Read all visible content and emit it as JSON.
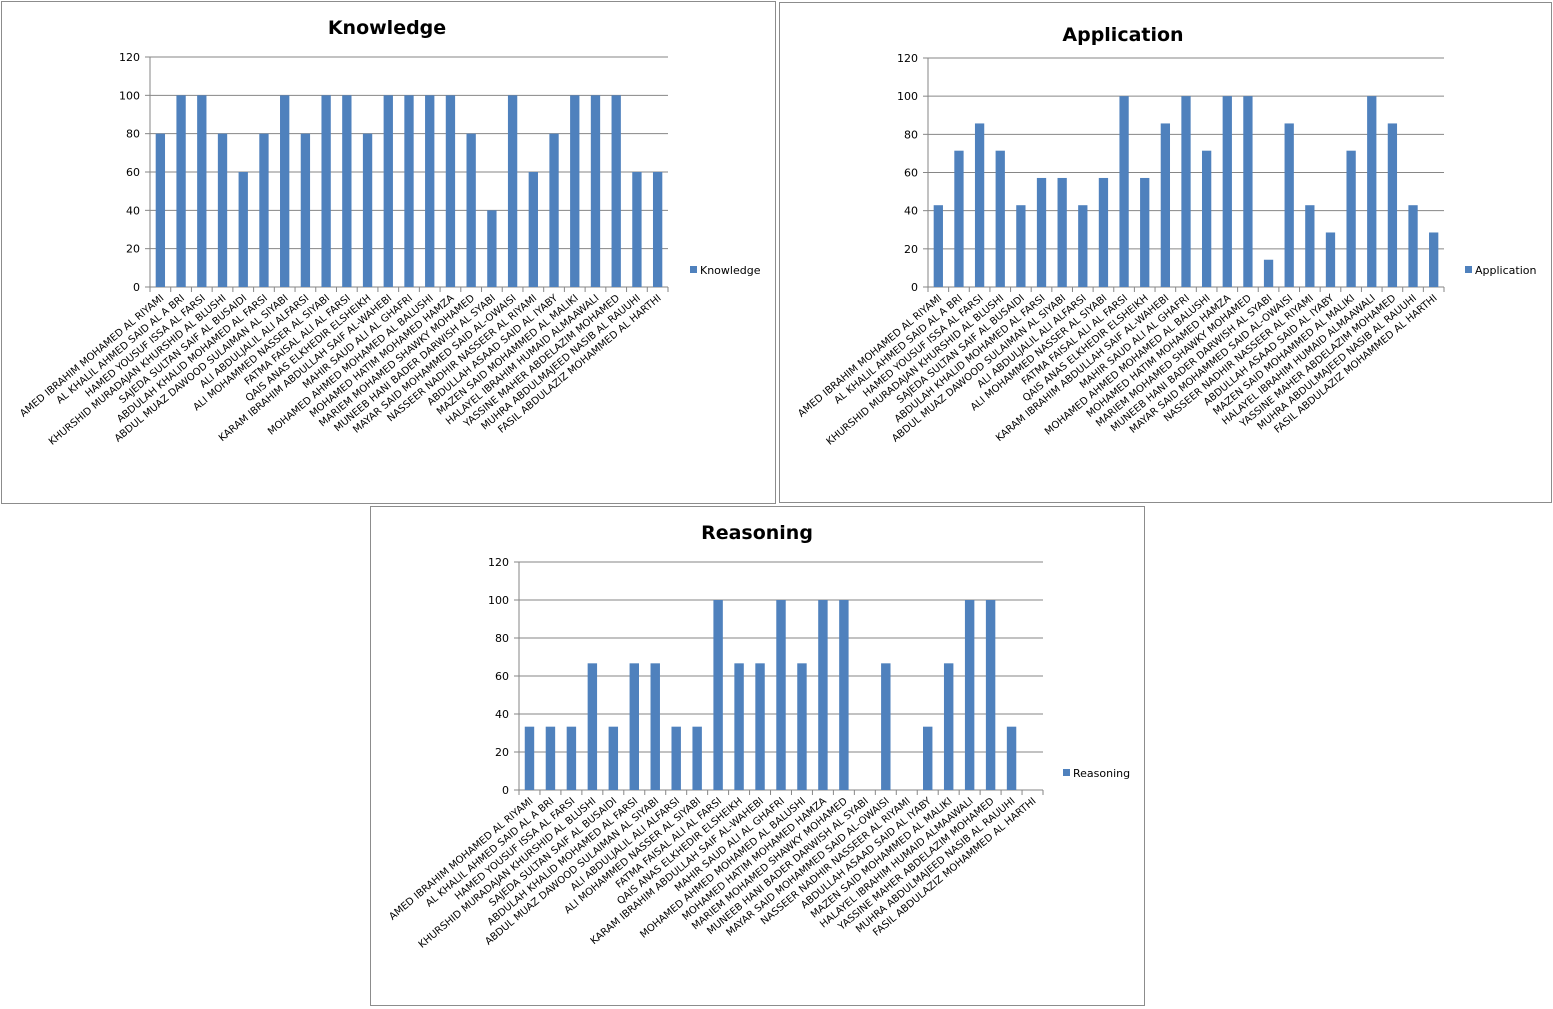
{
  "chart_data": [
    {
      "type": "bar",
      "title": "Knowledge",
      "legend": "Knowledge",
      "legend_position": "right",
      "ylim": [
        0,
        120
      ],
      "yticks": [
        0,
        20,
        40,
        60,
        80,
        100,
        120
      ],
      "grid": true,
      "color": "#4F81BD",
      "values": [
        80,
        100,
        100,
        80,
        60,
        80,
        100,
        80,
        100,
        100,
        80,
        100,
        100,
        100,
        100,
        80,
        40,
        100,
        60,
        80,
        100,
        100,
        100,
        60,
        60
      ]
    },
    {
      "type": "bar",
      "title": "Application",
      "legend": "Application",
      "legend_position": "right",
      "ylim": [
        0,
        120
      ],
      "yticks": [
        0,
        20,
        40,
        60,
        80,
        100,
        120
      ],
      "grid": true,
      "color": "#4F81BD",
      "values": [
        42.86,
        71.43,
        85.71,
        71.43,
        42.86,
        57.14,
        57.14,
        42.86,
        57.14,
        100,
        57.14,
        85.71,
        100,
        71.43,
        100,
        100,
        14.29,
        85.71,
        42.86,
        28.57,
        71.43,
        100,
        85.71,
        42.86,
        28.57
      ]
    },
    {
      "type": "bar",
      "title": "Reasoning",
      "legend": "Reasoning",
      "legend_position": "right",
      "ylim": [
        0,
        120
      ],
      "yticks": [
        0,
        20,
        40,
        60,
        80,
        100,
        120
      ],
      "grid": true,
      "color": "#4F81BD",
      "values": [
        33.33,
        33.33,
        33.33,
        66.67,
        33.33,
        66.67,
        66.67,
        33.33,
        33.33,
        100,
        66.67,
        66.67,
        100,
        66.67,
        100,
        100,
        0,
        66.67,
        0,
        33.33,
        66.67,
        100,
        100,
        33.33,
        0
      ]
    }
  ],
  "categories": [
    "AMED IBRAHIM MOHAMED  AL RIYAMI",
    "AL KHALIL AHMED SAID AL A BRI",
    "HAMED YOUSUF  ISSA AL FARSI",
    "KHURSHID MURADAJAN KHURSHID AL BLUSHI",
    "SAJEDA SULTAN SAIF AL BUSAIDI",
    "ABDULAH KHALID MOHAMED  AL FARSI",
    "ABDUL MUAZ DAWOOD SULAIMAN AL SIYABI",
    "ALI ABDULJALIL ALI ALFARSI",
    "ALI MOHAMMED NASSER  AL SIYABI",
    "FATMA FAISAL ALI AL FARSI",
    "QAIS ANAS ELKHEDIR ELSHEIKH",
    "KARAM IBRAHIM  ABDULLAH SAIF AL-WAHEBI",
    "MAHIR SAUD ALI AL GHAFRI",
    "MOHAMED AHMED  MOHAMED AL BALUSHI",
    "MOHAMED HATIM  MOHAMED HAMZA",
    "MARIEM MOHAMED SHAWKY MOHAMED",
    "MUNEEB  HANI BADER DARWISH AL SYABI",
    "MAYAR SAID MOHAMMED  SAID AL-OWAISI",
    "NASSEER NADHIR NASSEER  AL RIYAMI",
    "ABDULLAH ASAAD SAID AL IYABY",
    "MAZEN SAID MOHAMMED  AL MALIKI",
    "HALAYEL IBRAHIM  HUMAID ALMAAWALI",
    "YASSINE MAHER ABDELAZIM MOHAMED",
    "MUHRA ABDULMAJEED NASIB AL RAUUHI",
    "FASIL ABDULAZIZ MOHAMMED  AL HARTHI"
  ]
}
